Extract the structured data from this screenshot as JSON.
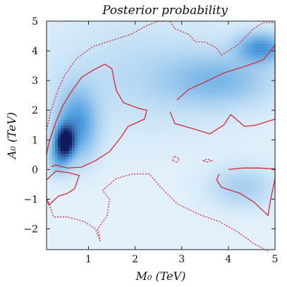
{
  "chart_data": {
    "type": "heatmap",
    "title": "Posterior probability",
    "xlabel": "M₀ (TeV)",
    "ylabel": "A₀ (TeV)",
    "xlim": [
      0.1,
      5
    ],
    "ylim": [
      -2.7,
      5
    ],
    "x_ticks": [
      1,
      2,
      3,
      4,
      5
    ],
    "y_ticks": [
      -2,
      -1,
      0,
      1,
      2,
      3,
      4,
      5
    ],
    "colormap": {
      "low": "#e3f1fb",
      "mid": "#4f9fe0",
      "high": "#101a5c"
    },
    "density_blobs": [
      {
        "x": 0.5,
        "y": 0.95,
        "sx": 0.13,
        "sy": 0.35,
        "w": 1.0
      },
      {
        "x": 0.75,
        "y": 1.5,
        "sx": 0.3,
        "sy": 0.8,
        "w": 0.45
      },
      {
        "x": 0.35,
        "y": 0.4,
        "sx": 0.15,
        "sy": 0.4,
        "w": 0.3
      },
      {
        "x": 4.7,
        "y": 4.1,
        "sx": 0.35,
        "sy": 0.35,
        "w": 0.45
      },
      {
        "x": 3.8,
        "y": 3.0,
        "sx": 0.8,
        "sy": 0.6,
        "w": 0.25
      },
      {
        "x": 4.3,
        "y": -0.6,
        "sx": 0.5,
        "sy": 0.5,
        "w": 0.18
      },
      {
        "x": 2.2,
        "y": 3.2,
        "sx": 1.6,
        "sy": 1.4,
        "w": 0.12
      }
    ],
    "contours": [
      {
        "style": "solid",
        "color": "#d42a3a",
        "name": "",
        "points": [
          [
            0.2,
            0.1
          ],
          [
            0.3,
            0.15
          ],
          [
            0.55,
            0.05
          ],
          [
            0.85,
            0.08
          ],
          [
            1.15,
            0.3
          ],
          [
            1.45,
            0.6
          ],
          [
            1.7,
            1.1
          ],
          [
            1.85,
            1.45
          ],
          [
            2.2,
            1.7
          ],
          [
            2.25,
            2.0
          ],
          [
            2.1,
            2.05
          ],
          [
            1.75,
            2.25
          ],
          [
            1.6,
            2.65
          ],
          [
            1.55,
            3.0
          ],
          [
            1.5,
            3.4
          ],
          [
            1.35,
            3.55
          ],
          [
            1.1,
            3.35
          ],
          [
            0.85,
            3.1
          ],
          [
            0.6,
            2.55
          ],
          [
            0.45,
            2.15
          ],
          [
            0.3,
            1.6
          ],
          [
            0.15,
            0.9
          ],
          [
            0.1,
            0.5
          ]
        ]
      },
      {
        "style": "solid",
        "color": "#d42a3a",
        "name": "",
        "points": [
          [
            0.1,
            -0.35
          ],
          [
            0.3,
            -0.05
          ],
          [
            0.55,
            -0.1
          ],
          [
            0.8,
            -0.2
          ],
          [
            0.7,
            -0.65
          ],
          [
            0.55,
            -0.8
          ],
          [
            0.35,
            -0.9
          ],
          [
            0.25,
            -1.05
          ],
          [
            0.15,
            -1.2
          ],
          [
            0.1,
            -1.0
          ]
        ]
      },
      {
        "style": "solid",
        "color": "#d42a3a",
        "name": "",
        "points": [
          [
            2.75,
            1.95
          ],
          [
            2.85,
            1.55
          ],
          [
            3.3,
            1.35
          ],
          [
            3.6,
            1.2
          ],
          [
            3.9,
            1.5
          ],
          [
            4.05,
            1.85
          ],
          [
            4.2,
            1.65
          ],
          [
            4.35,
            1.45
          ],
          [
            4.6,
            1.5
          ],
          [
            5.0,
            1.7
          ],
          [
            5.0,
            4.2
          ],
          [
            4.75,
            3.7
          ],
          [
            4.4,
            3.5
          ],
          [
            3.9,
            3.25
          ],
          [
            3.5,
            2.95
          ],
          [
            3.15,
            2.7
          ],
          [
            2.9,
            2.35
          ]
        ]
      },
      {
        "style": "solid",
        "color": "#d42a3a",
        "name": "",
        "points": [
          [
            4.0,
            0.0
          ],
          [
            4.3,
            0.05
          ],
          [
            4.65,
            0.05
          ],
          [
            5.0,
            0.02
          ],
          [
            5.0,
            -0.3
          ],
          [
            4.9,
            -1.05
          ],
          [
            4.85,
            -1.55
          ],
          [
            4.55,
            -1.1
          ],
          [
            4.25,
            -0.8
          ],
          [
            3.85,
            -0.6
          ],
          [
            3.75,
            -0.35
          ],
          [
            3.8,
            -0.15
          ]
        ]
      },
      {
        "style": "dotted",
        "color": "#d42a3a",
        "name": "",
        "points": [
          [
            0.1,
            1.35
          ],
          [
            0.2,
            2.0
          ],
          [
            0.35,
            2.7
          ],
          [
            0.5,
            3.2
          ],
          [
            0.75,
            3.75
          ],
          [
            1.1,
            4.15
          ],
          [
            1.5,
            4.35
          ],
          [
            1.9,
            4.55
          ],
          [
            2.25,
            4.85
          ],
          [
            2.5,
            5.0
          ],
          [
            2.75,
            5.0
          ],
          [
            2.85,
            4.75
          ],
          [
            3.15,
            4.55
          ],
          [
            3.3,
            4.3
          ],
          [
            3.5,
            4.3
          ],
          [
            3.75,
            4.1
          ],
          [
            3.85,
            3.85
          ],
          [
            4.2,
            4.2
          ],
          [
            4.55,
            4.75
          ],
          [
            4.75,
            4.95
          ],
          [
            5.0,
            4.95
          ]
        ]
      },
      {
        "style": "dotted",
        "color": "#d42a3a",
        "name": "",
        "points": [
          [
            0.1,
            -0.9
          ],
          [
            0.25,
            -1.6
          ],
          [
            0.55,
            -1.6
          ],
          [
            0.9,
            -1.75
          ],
          [
            1.15,
            -2.0
          ],
          [
            1.25,
            -2.4
          ],
          [
            1.2,
            -2.0
          ],
          [
            1.4,
            -1.55
          ],
          [
            1.45,
            -1.0
          ],
          [
            1.3,
            -0.7
          ],
          [
            1.6,
            -0.3
          ],
          [
            1.95,
            -0.15
          ],
          [
            2.3,
            -0.15
          ],
          [
            2.55,
            -0.6
          ],
          [
            2.9,
            -1.15
          ],
          [
            3.35,
            -1.5
          ],
          [
            3.8,
            -1.75
          ],
          [
            4.2,
            -2.1
          ],
          [
            4.55,
            -2.5
          ],
          [
            4.85,
            -2.75
          ]
        ]
      },
      {
        "style": "dotted",
        "color": "#d42a3a",
        "name": "",
        "points": [
          [
            2.85,
            0.45
          ],
          [
            2.95,
            0.35
          ],
          [
            2.9,
            0.25
          ],
          [
            2.8,
            0.3
          ],
          [
            2.85,
            0.45
          ]
        ]
      },
      {
        "style": "dotted",
        "color": "#d42a3a",
        "name": "",
        "points": [
          [
            3.45,
            0.3
          ],
          [
            3.55,
            0.35
          ],
          [
            3.65,
            0.3
          ],
          [
            3.55,
            0.25
          ],
          [
            3.45,
            0.3
          ]
        ]
      }
    ]
  }
}
